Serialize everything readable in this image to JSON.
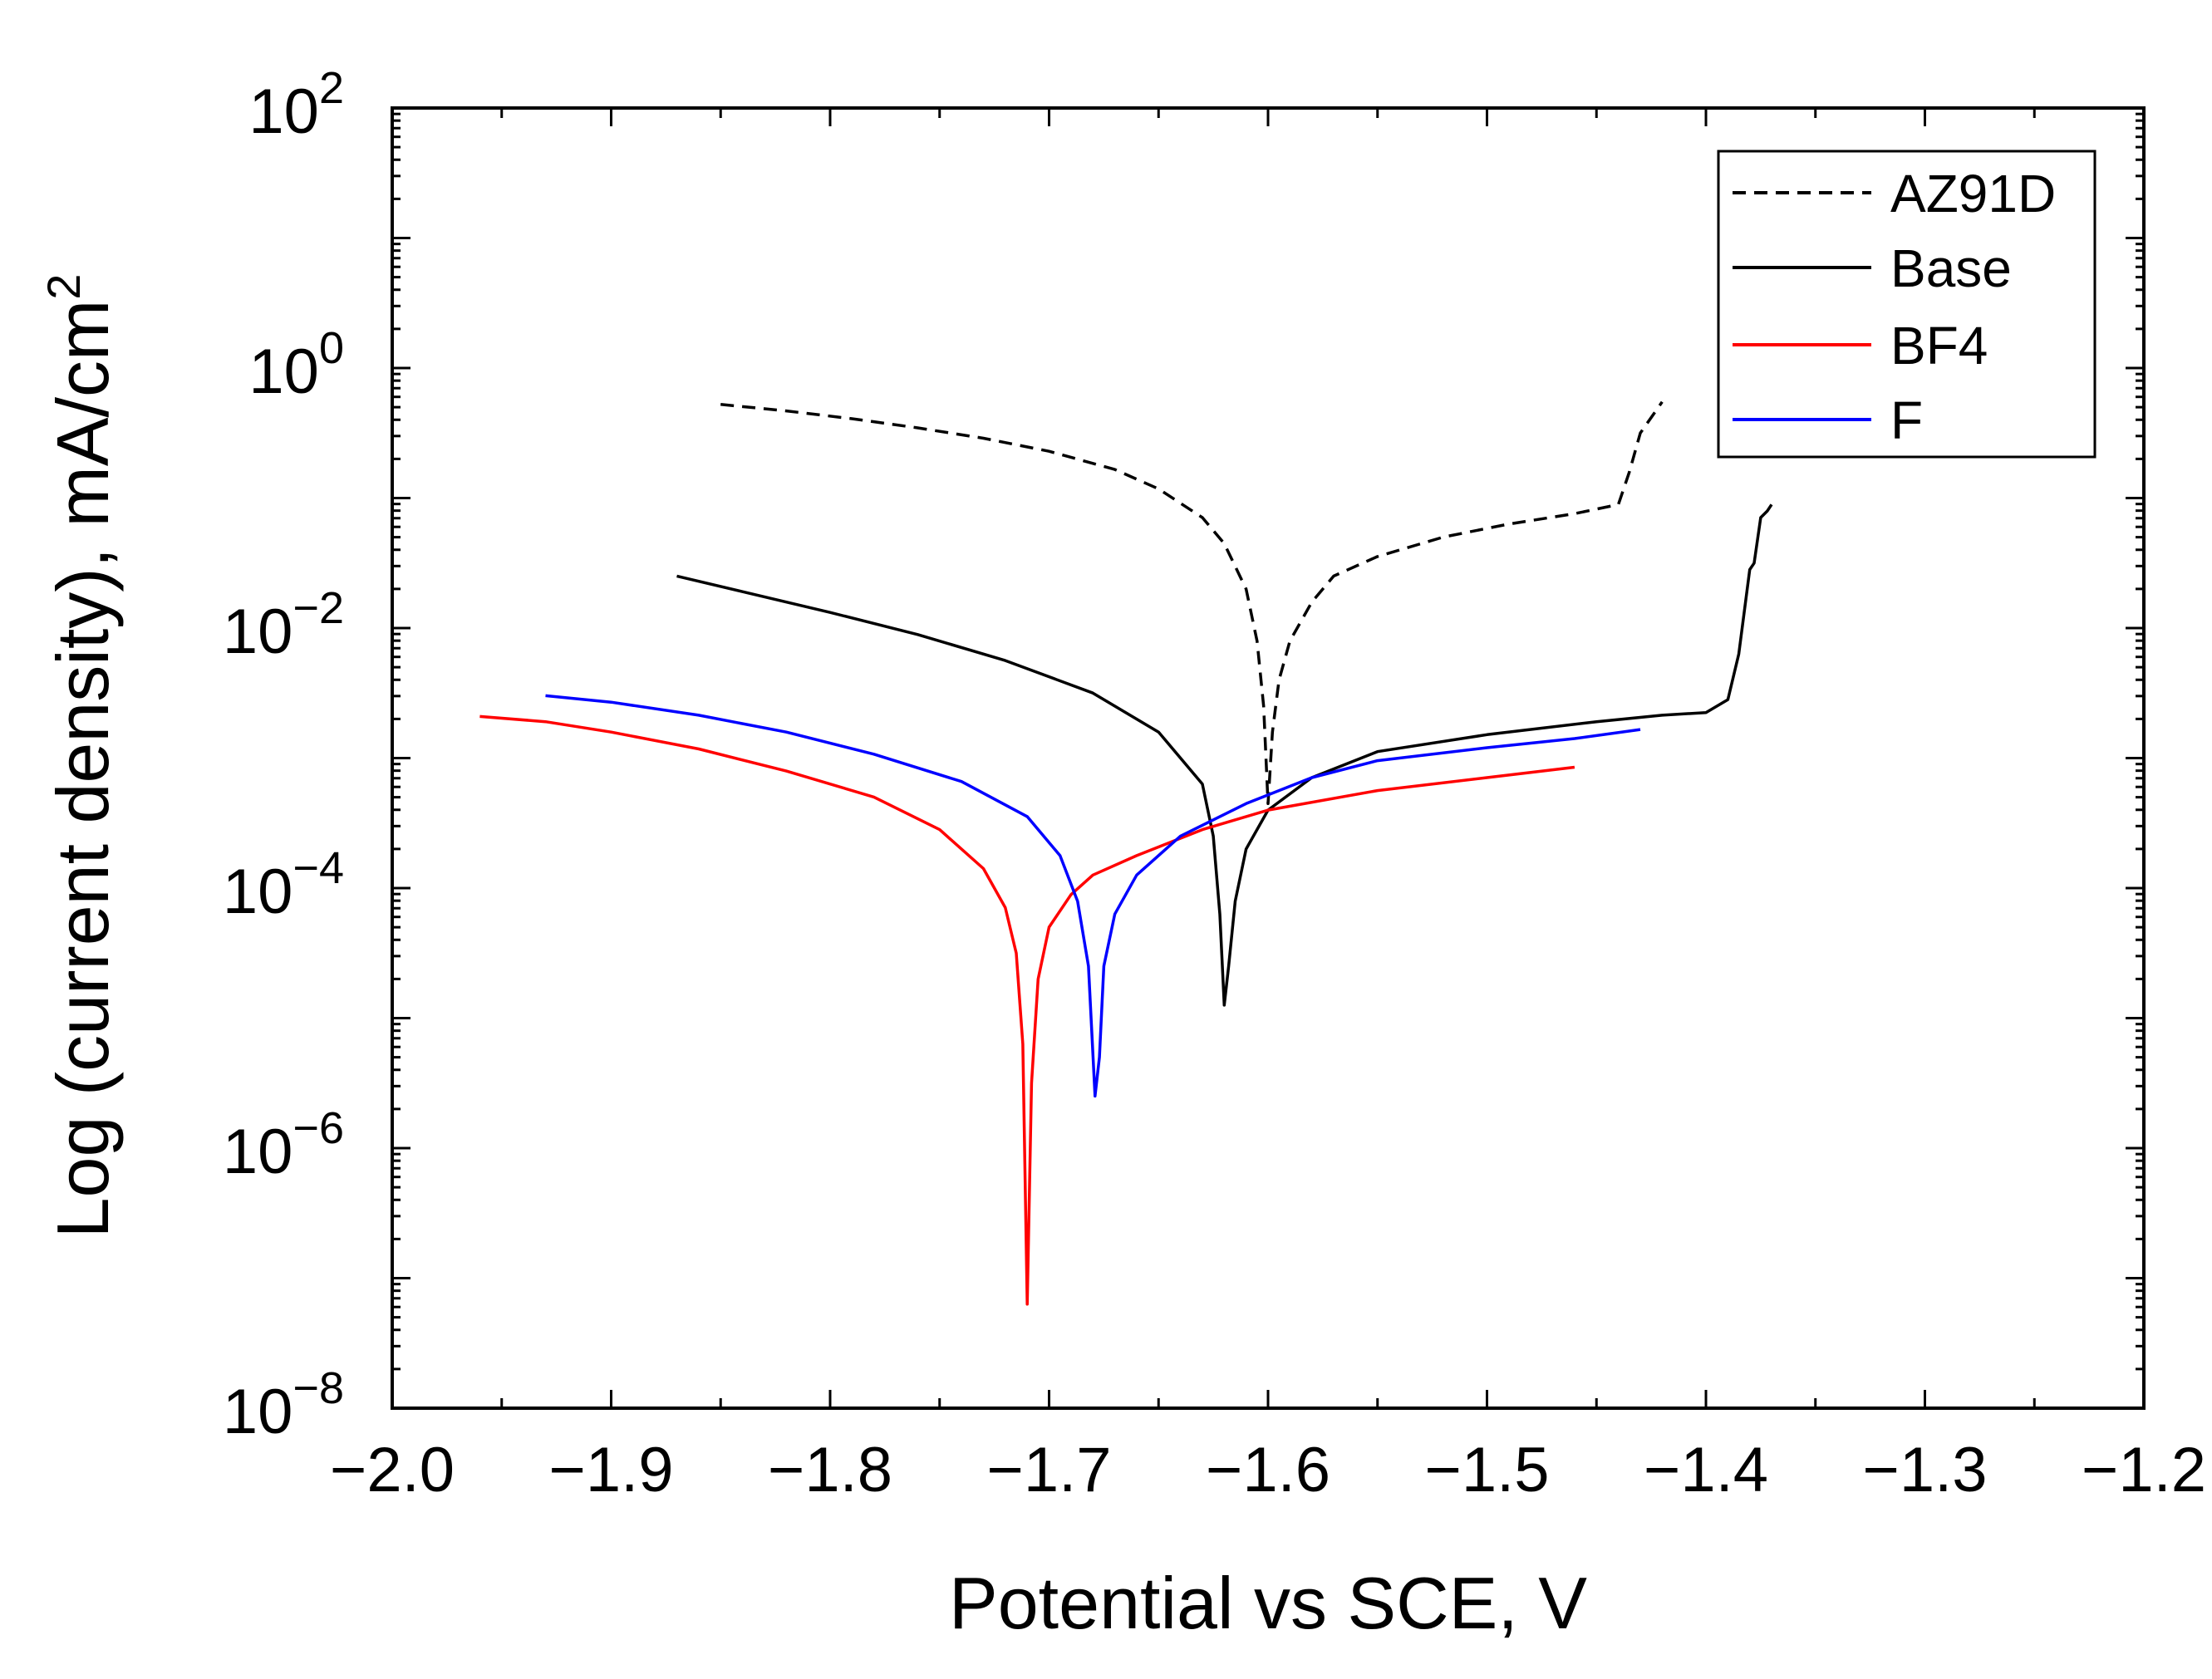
{
  "chart_data": {
    "type": "line",
    "title": "",
    "xlabel": "Potential vs SCE,  V",
    "ylabel": "Log (current density),  mA/cm",
    "ylabel_superscript": "2",
    "xlim": [
      -2.0,
      -1.2
    ],
    "ylim_log10": [
      -8,
      2
    ],
    "yscale": "log",
    "x_ticks": [
      -2.0,
      -1.9,
      -1.8,
      -1.7,
      -1.6,
      -1.5,
      -1.4,
      -1.3,
      -1.2
    ],
    "x_tick_labels": [
      "−2.0",
      "−1.9",
      "−1.8",
      "−1.7",
      "−1.6",
      "−1.5",
      "−1.4",
      "−1.3",
      "−1.2"
    ],
    "y_tick_exponents": [
      -8,
      -6,
      -4,
      -2,
      0,
      2
    ],
    "y_tick_exponent_labels": [
      "−8",
      "−6",
      "−4",
      "−2",
      "0",
      "2"
    ],
    "y_tick_base": "10",
    "legend_position": "top-right",
    "series": [
      {
        "name": "AZ91D",
        "color": "#000000",
        "dashed": true,
        "x": [
          -1.85,
          -1.82,
          -1.79,
          -1.76,
          -1.73,
          -1.7,
          -1.67,
          -1.65,
          -1.63,
          -1.62,
          -1.61,
          -1.605,
          -1.602,
          -1.6,
          -1.598,
          -1.595,
          -1.59,
          -1.58,
          -1.57,
          -1.55,
          -1.52,
          -1.49,
          -1.46,
          -1.44,
          -1.435,
          -1.43,
          -1.42
        ],
        "log_y": [
          -0.28,
          -0.33,
          -0.39,
          -0.46,
          -0.54,
          -0.64,
          -0.78,
          -0.93,
          -1.15,
          -1.35,
          -1.7,
          -2.1,
          -2.6,
          -3.35,
          -2.8,
          -2.4,
          -2.1,
          -1.8,
          -1.6,
          -1.45,
          -1.3,
          -1.2,
          -1.12,
          -1.05,
          -0.8,
          -0.5,
          -0.26
        ]
      },
      {
        "name": "Base",
        "color": "#000000",
        "dashed": false,
        "x": [
          -1.87,
          -1.84,
          -1.8,
          -1.76,
          -1.72,
          -1.68,
          -1.65,
          -1.63,
          -1.625,
          -1.622,
          -1.62,
          -1.618,
          -1.615,
          -1.61,
          -1.6,
          -1.58,
          -1.55,
          -1.5,
          -1.45,
          -1.42,
          -1.4,
          -1.39,
          -1.385,
          -1.38,
          -1.378,
          -1.375,
          -1.372,
          -1.37
        ],
        "log_y": [
          -1.6,
          -1.72,
          -1.88,
          -2.05,
          -2.25,
          -2.5,
          -2.8,
          -3.2,
          -3.6,
          -4.2,
          -4.9,
          -4.6,
          -4.1,
          -3.7,
          -3.4,
          -3.15,
          -2.95,
          -2.82,
          -2.72,
          -2.67,
          -2.65,
          -2.55,
          -2.2,
          -1.55,
          -1.5,
          -1.15,
          -1.1,
          -1.05
        ]
      },
      {
        "name": "BF4",
        "color": "#ff0000",
        "dashed": false,
        "x": [
          -1.96,
          -1.93,
          -1.9,
          -1.86,
          -1.82,
          -1.78,
          -1.75,
          -1.73,
          -1.72,
          -1.715,
          -1.712,
          -1.71,
          -1.708,
          -1.705,
          -1.7,
          -1.69,
          -1.68,
          -1.66,
          -1.63,
          -1.6,
          -1.55,
          -1.5,
          -1.46
        ],
        "log_y": [
          -2.68,
          -2.72,
          -2.8,
          -2.93,
          -3.1,
          -3.3,
          -3.55,
          -3.85,
          -4.15,
          -4.5,
          -5.2,
          -7.2,
          -5.5,
          -4.7,
          -4.3,
          -4.05,
          -3.9,
          -3.75,
          -3.55,
          -3.4,
          -3.25,
          -3.15,
          -3.07
        ]
      },
      {
        "name": "F",
        "color": "#0000ff",
        "dashed": false,
        "x": [
          -1.93,
          -1.9,
          -1.86,
          -1.82,
          -1.78,
          -1.74,
          -1.71,
          -1.695,
          -1.687,
          -1.682,
          -1.679,
          -1.677,
          -1.675,
          -1.67,
          -1.66,
          -1.64,
          -1.61,
          -1.58,
          -1.55,
          -1.5,
          -1.46,
          -1.43
        ],
        "log_y": [
          -2.52,
          -2.57,
          -2.67,
          -2.8,
          -2.97,
          -3.18,
          -3.45,
          -3.75,
          -4.1,
          -4.6,
          -5.6,
          -5.3,
          -4.6,
          -4.2,
          -3.9,
          -3.6,
          -3.35,
          -3.15,
          -3.02,
          -2.92,
          -2.85,
          -2.78
        ]
      }
    ]
  }
}
